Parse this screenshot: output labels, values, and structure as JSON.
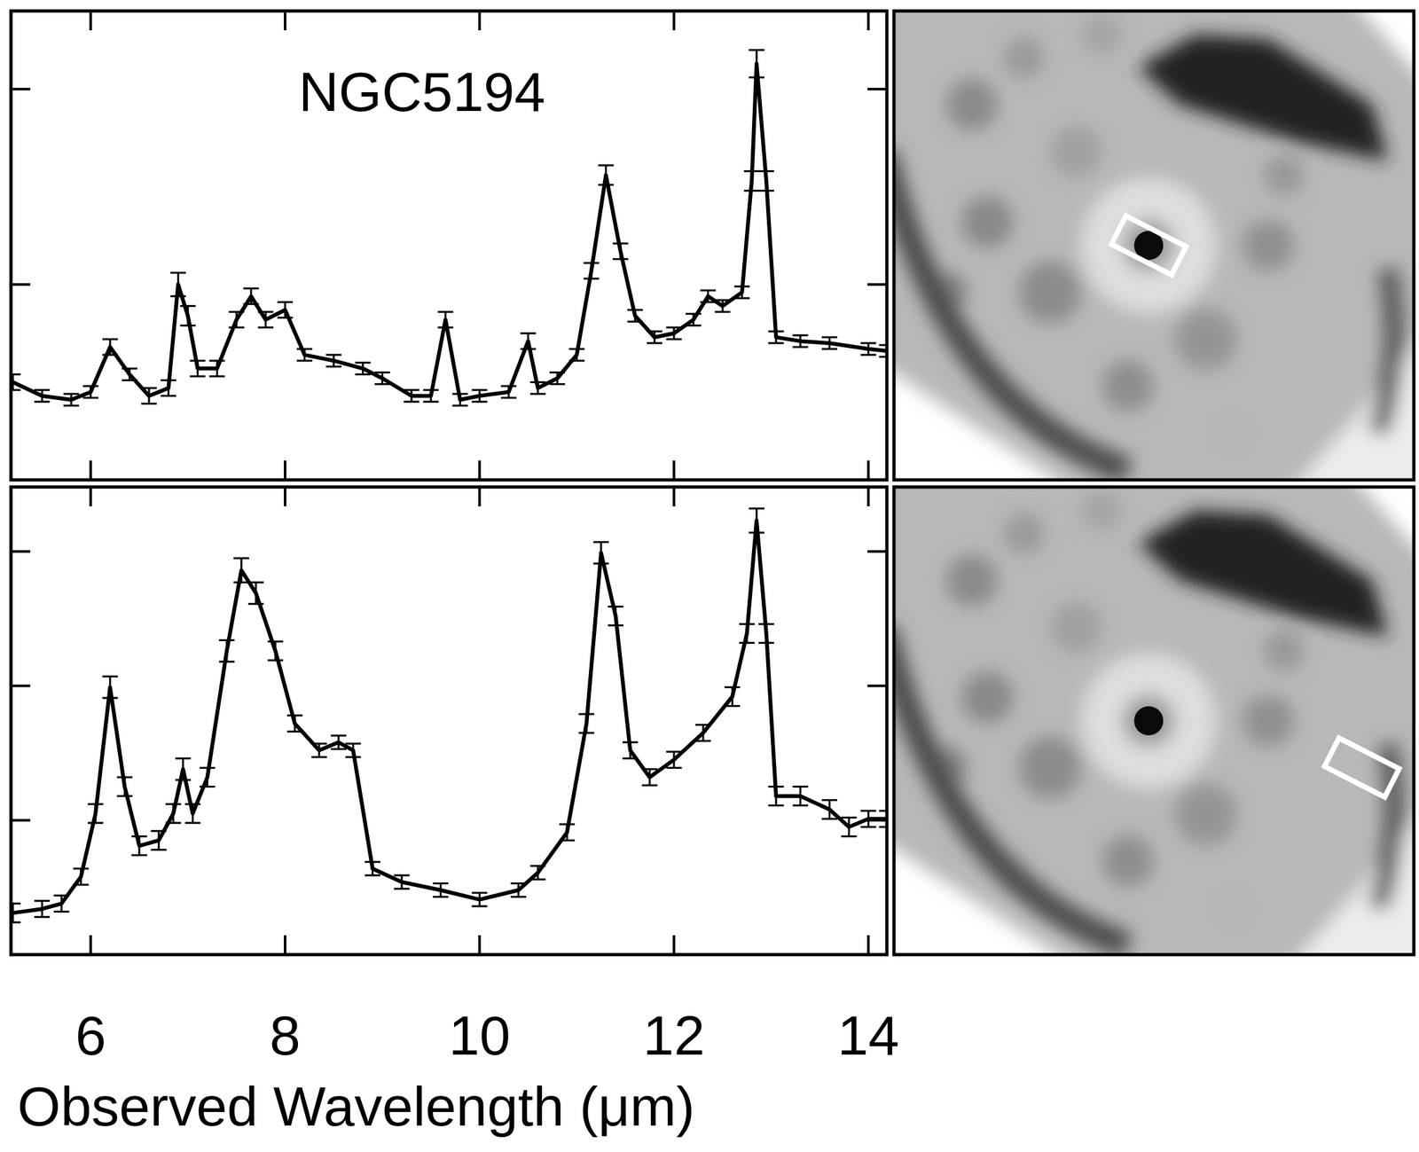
{
  "chart_data": [
    {
      "type": "line",
      "title": "NGC5194",
      "x": [
        5.2,
        5.5,
        5.8,
        6.0,
        6.2,
        6.4,
        6.6,
        6.8,
        6.9,
        7.0,
        7.1,
        7.3,
        7.5,
        7.65,
        7.8,
        8.0,
        8.2,
        8.5,
        8.8,
        9.0,
        9.3,
        9.5,
        9.65,
        9.8,
        10.0,
        10.3,
        10.5,
        10.6,
        10.8,
        11.0,
        11.15,
        11.3,
        11.45,
        11.6,
        11.8,
        12.0,
        12.2,
        12.35,
        12.5,
        12.7,
        12.8,
        12.85,
        12.95,
        13.05,
        13.3,
        13.6,
        14.0,
        14.19
      ],
      "series": [
        {
          "color": "#000000",
          "line_style": "solid",
          "values": [
            0.5,
            0.43,
            0.41,
            0.45,
            0.68,
            0.54,
            0.43,
            0.47,
            1.0,
            0.84,
            0.57,
            0.57,
            0.82,
            0.94,
            0.82,
            0.87,
            0.64,
            0.61,
            0.57,
            0.52,
            0.43,
            0.43,
            0.82,
            0.41,
            0.43,
            0.45,
            0.71,
            0.47,
            0.52,
            0.64,
            1.07,
            1.56,
            1.17,
            0.84,
            0.73,
            0.75,
            0.82,
            0.94,
            0.89,
            0.96,
            1.53,
            2.13,
            1.53,
            0.73,
            0.71,
            0.7,
            0.67,
            0.66
          ],
          "errors": [
            0.04,
            0.03,
            0.03,
            0.03,
            0.04,
            0.03,
            0.04,
            0.04,
            0.06,
            0.05,
            0.04,
            0.04,
            0.04,
            0.04,
            0.04,
            0.04,
            0.03,
            0.03,
            0.03,
            0.03,
            0.03,
            0.03,
            0.04,
            0.03,
            0.03,
            0.03,
            0.04,
            0.03,
            0.03,
            0.03,
            0.04,
            0.05,
            0.04,
            0.03,
            0.03,
            0.03,
            0.03,
            0.03,
            0.03,
            0.03,
            0.05,
            0.07,
            0.05,
            0.03,
            0.03,
            0.03,
            0.03,
            0.03
          ]
        }
      ],
      "xlim": [
        5.18,
        14.19
      ],
      "xticks": [
        6,
        8,
        10,
        12,
        14
      ],
      "ylim": [
        0,
        2.4
      ],
      "yticks": [
        1,
        2
      ],
      "tick_labels": false
    },
    {
      "type": "line",
      "x_label": "Observed Wavelength (μm)",
      "x": [
        5.2,
        5.5,
        5.7,
        5.9,
        6.05,
        6.2,
        6.35,
        6.5,
        6.7,
        6.85,
        6.95,
        7.05,
        7.2,
        7.4,
        7.55,
        7.7,
        7.9,
        8.1,
        8.35,
        8.55,
        8.7,
        8.9,
        9.2,
        9.6,
        10.0,
        10.4,
        10.6,
        10.9,
        11.1,
        11.25,
        11.4,
        11.55,
        11.75,
        12.0,
        12.3,
        12.6,
        12.75,
        12.85,
        12.95,
        13.05,
        13.3,
        13.6,
        13.8,
        14.0,
        14.19
      ],
      "series": [
        {
          "color": "#000000",
          "line_style": "solid",
          "values": [
            0.31,
            0.34,
            0.38,
            0.58,
            1.05,
            1.99,
            1.25,
            0.81,
            0.85,
            1.05,
            1.38,
            1.05,
            1.32,
            2.26,
            2.86,
            2.69,
            2.26,
            1.72,
            1.52,
            1.58,
            1.52,
            0.64,
            0.54,
            0.48,
            0.41,
            0.48,
            0.61,
            0.91,
            1.72,
            2.99,
            2.52,
            1.52,
            1.32,
            1.45,
            1.65,
            1.92,
            2.39,
            3.23,
            2.39,
            1.18,
            1.18,
            1.08,
            0.95,
            1.01,
            1.01
          ],
          "errors": [
            0.07,
            0.06,
            0.06,
            0.06,
            0.07,
            0.08,
            0.07,
            0.07,
            0.07,
            0.07,
            0.08,
            0.07,
            0.07,
            0.08,
            0.09,
            0.08,
            0.07,
            0.06,
            0.05,
            0.05,
            0.05,
            0.05,
            0.05,
            0.05,
            0.05,
            0.05,
            0.05,
            0.06,
            0.07,
            0.08,
            0.07,
            0.06,
            0.06,
            0.06,
            0.06,
            0.07,
            0.07,
            0.09,
            0.07,
            0.07,
            0.07,
            0.07,
            0.07,
            0.06,
            0.06
          ]
        }
      ],
      "xlim": [
        5.18,
        14.19
      ],
      "xticks": [
        6,
        8,
        10,
        12,
        14
      ],
      "ylim": [
        0,
        3.48
      ],
      "yticks": [
        1,
        2,
        3
      ],
      "tick_labels": "x"
    }
  ]
}
